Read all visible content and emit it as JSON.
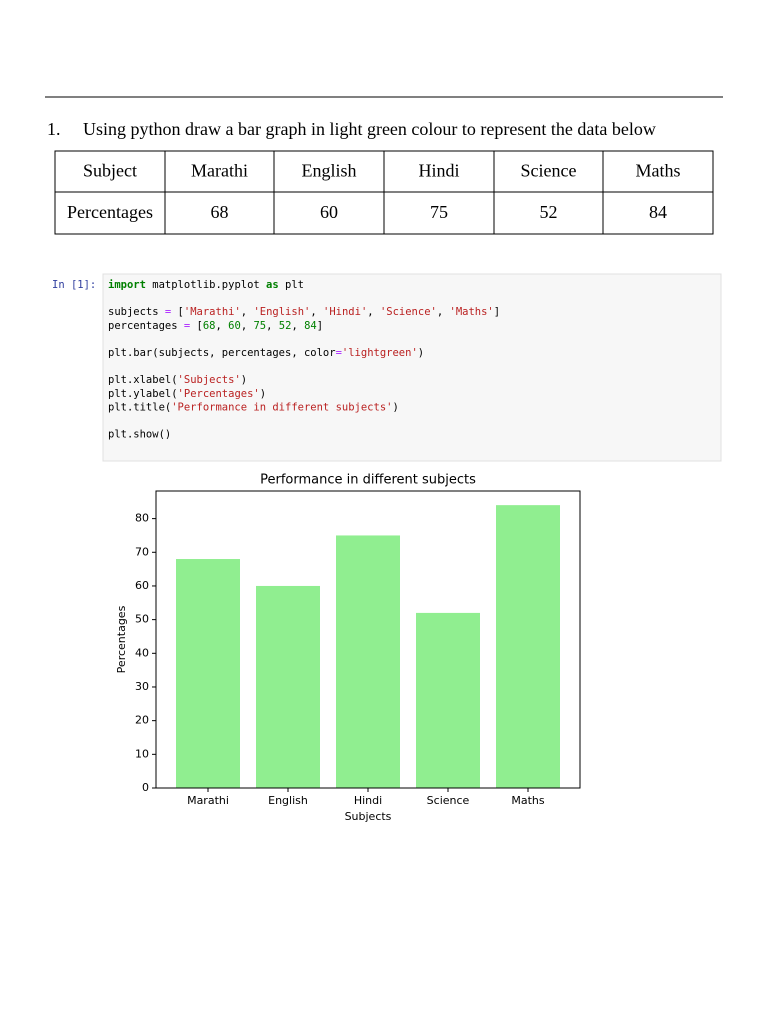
{
  "question": {
    "number": "1.",
    "text": "Using python draw a bar graph in light green colour to represent the data below"
  },
  "table": {
    "rows": [
      [
        "Subject",
        "Marathi",
        "English",
        "Hindi",
        "Science",
        "Maths"
      ],
      [
        "Percentages",
        68,
        60,
        75,
        52,
        84
      ]
    ]
  },
  "code": {
    "prompt": "In [1]:",
    "blocks": [
      [
        [
          {
            "text": "import",
            "color": "#008000"
          },
          {
            "text": " matplotlib.pyplot "
          },
          {
            "text": "as",
            "color": "#008000"
          },
          {
            "text": " plt"
          }
        ]
      ],
      [
        [
          {
            "text": "subjects "
          },
          {
            "text": "=",
            "color": "#aa22ff"
          },
          {
            "text": " ["
          },
          {
            "text": "'Marathi'",
            "color": "#ba2121"
          },
          {
            "text": ", "
          },
          {
            "text": "'English'",
            "color": "#ba2121"
          },
          {
            "text": ", "
          },
          {
            "text": "'Hindi'",
            "color": "#ba2121"
          },
          {
            "text": ", "
          },
          {
            "text": "'Science'",
            "color": "#ba2121"
          },
          {
            "text": ", "
          },
          {
            "text": "'Maths'",
            "color": "#ba2121"
          },
          {
            "text": "]"
          }
        ],
        [
          {
            "text": "percentages "
          },
          {
            "text": "=",
            "color": "#aa22ff"
          },
          {
            "text": " ["
          },
          {
            "text": "68",
            "color": "#008000"
          },
          {
            "text": ", "
          },
          {
            "text": "60",
            "color": "#008000"
          },
          {
            "text": ", "
          },
          {
            "text": "75",
            "color": "#008000"
          },
          {
            "text": ", "
          },
          {
            "text": "52",
            "color": "#008000"
          },
          {
            "text": ", "
          },
          {
            "text": "84",
            "color": "#008000"
          },
          {
            "text": "]"
          }
        ]
      ],
      [
        [
          {
            "text": "plt.bar(subjects, percentages, color"
          },
          {
            "text": "=",
            "color": "#aa22ff"
          },
          {
            "text": "'lightgreen'",
            "color": "#ba2121"
          },
          {
            "text": ")"
          }
        ]
      ],
      [
        [
          {
            "text": "plt.xlabel("
          },
          {
            "text": "'Subjects'",
            "color": "#ba2121"
          },
          {
            "text": ")"
          }
        ],
        [
          {
            "text": "plt.ylabel("
          },
          {
            "text": "'Percentages'",
            "color": "#ba2121"
          },
          {
            "text": ")"
          }
        ],
        [
          {
            "text": "plt.title("
          },
          {
            "text": "'Performance in different subjects'",
            "color": "#ba2121"
          },
          {
            "text": ")"
          }
        ]
      ],
      [
        [
          {
            "text": "plt.show()"
          }
        ]
      ]
    ]
  },
  "chart_data": {
    "type": "bar",
    "title": "Performance in different subjects",
    "xlabel": "Subjects",
    "ylabel": "Percentages",
    "categories": [
      "Marathi",
      "English",
      "Hindi",
      "Science",
      "Maths"
    ],
    "values": [
      68,
      60,
      75,
      52,
      84
    ],
    "color": "#90ee90",
    "ylim": [
      0,
      88.2
    ],
    "yticks": [
      0,
      10,
      20,
      30,
      40,
      50,
      60,
      70,
      80
    ]
  }
}
